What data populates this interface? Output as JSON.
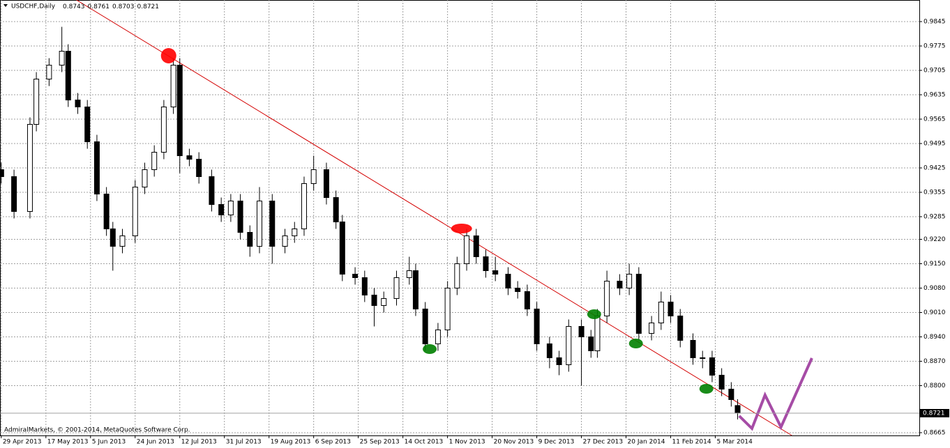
{
  "chart_data": {
    "type": "candlestick",
    "title": "USDCHF,Daily",
    "footer": "AdmiralMarkets, © 2001-2014, MetaQuotes Software Corp.",
    "xlim": [
      -0.4,
      288
    ],
    "xticks": [
      {
        "value": 0,
        "label": "29 Apr 2013"
      },
      {
        "value": 14,
        "label": "17 May 2013"
      },
      {
        "value": 28,
        "label": "5 Jun 2013"
      },
      {
        "value": 42,
        "label": "24 Jun 2013"
      },
      {
        "value": 56,
        "label": "12 Jul 2013"
      },
      {
        "value": 70,
        "label": "31 Jul 2013"
      },
      {
        "value": 84,
        "label": "19 Aug 2013"
      },
      {
        "value": 98,
        "label": "6 Sep 2013"
      },
      {
        "value": 112,
        "label": "25 Sep 2013"
      },
      {
        "value": 126,
        "label": "14 Oct 2013"
      },
      {
        "value": 140,
        "label": "1 Nov 2013"
      },
      {
        "value": 154,
        "label": "20 Nov 2013"
      },
      {
        "value": 168,
        "label": "9 Dec 2013"
      },
      {
        "value": 182,
        "label": "27 Dec 2013"
      },
      {
        "value": 196,
        "label": "20 Jan 2014"
      },
      {
        "value": 210,
        "label": "11 Feb 2014"
      },
      {
        "value": 224,
        "label": "5 Mar 2014"
      }
    ],
    "ylim": [
      0.8657,
      0.9907
    ],
    "yticks": [
      0.9845,
      0.9775,
      0.9705,
      0.9635,
      0.9565,
      0.9495,
      0.9425,
      0.9355,
      0.9285,
      {
        "value": 0.922,
        "label": "0.9220"
      },
      {
        "value": 0.915,
        "label": "0.9150"
      },
      {
        "value": 0.908,
        "label": "0.9080"
      },
      {
        "value": 0.901,
        "label": "0.9010"
      },
      {
        "value": 0.894,
        "label": "0.8940"
      },
      {
        "value": 0.887,
        "label": "0.8870"
      },
      {
        "value": 0.88,
        "label": "0.8800"
      },
      0.8665
    ],
    "grid": true,
    "color": "#000000",
    "x": [
      0,
      4,
      9,
      11,
      15,
      19,
      21,
      24,
      27,
      30,
      33,
      35,
      38,
      42,
      45,
      48,
      51,
      54,
      56,
      59,
      62,
      66,
      69,
      72,
      75,
      78,
      81,
      85,
      89,
      92,
      95,
      98,
      102,
      105,
      107,
      111,
      114,
      117,
      120,
      124,
      128,
      130,
      133,
      137,
      140,
      143,
      146,
      149,
      152,
      155,
      159,
      162,
      165,
      168,
      172,
      175,
      178,
      182,
      185,
      187,
      190,
      194,
      197,
      200,
      204,
      207,
      210,
      213,
      217,
      220,
      223,
      226,
      229,
      231
    ],
    "ohlc": [
      [
        0.942,
        0.944,
        0.938,
        0.94
      ],
      [
        0.94,
        0.942,
        0.928,
        0.93
      ],
      [
        0.93,
        0.957,
        0.928,
        0.955
      ],
      [
        0.955,
        0.97,
        0.953,
        0.968
      ],
      [
        0.968,
        0.974,
        0.966,
        0.972
      ],
      [
        0.972,
        0.983,
        0.97,
        0.976
      ],
      [
        0.976,
        0.978,
        0.96,
        0.962
      ],
      [
        0.962,
        0.964,
        0.958,
        0.96
      ],
      [
        0.96,
        0.962,
        0.948,
        0.95
      ],
      [
        0.95,
        0.952,
        0.933,
        0.935
      ],
      [
        0.935,
        0.937,
        0.923,
        0.925
      ],
      [
        0.925,
        0.927,
        0.913,
        0.92
      ],
      [
        0.92,
        0.925,
        0.918,
        0.923
      ],
      [
        0.923,
        0.939,
        0.921,
        0.937
      ],
      [
        0.937,
        0.944,
        0.935,
        0.942
      ],
      [
        0.942,
        0.949,
        0.94,
        0.947
      ],
      [
        0.947,
        0.962,
        0.945,
        0.96
      ],
      [
        0.96,
        0.974,
        0.958,
        0.972
      ],
      [
        0.972,
        0.974,
        0.941,
        0.946
      ],
      [
        0.946,
        0.948,
        0.943,
        0.945
      ],
      [
        0.945,
        0.947,
        0.938,
        0.94
      ],
      [
        0.94,
        0.942,
        0.93,
        0.932
      ],
      [
        0.932,
        0.934,
        0.927,
        0.929
      ],
      [
        0.929,
        0.935,
        0.927,
        0.933
      ],
      [
        0.933,
        0.935,
        0.922,
        0.924
      ],
      [
        0.924,
        0.926,
        0.917,
        0.92
      ],
      [
        0.92,
        0.937,
        0.918,
        0.933
      ],
      [
        0.933,
        0.935,
        0.915,
        0.92
      ],
      [
        0.92,
        0.925,
        0.918,
        0.923
      ],
      [
        0.923,
        0.927,
        0.921,
        0.925
      ],
      [
        0.925,
        0.94,
        0.923,
        0.938
      ],
      [
        0.938,
        0.946,
        0.936,
        0.942
      ],
      [
        0.942,
        0.944,
        0.932,
        0.934
      ],
      [
        0.934,
        0.936,
        0.925,
        0.927
      ],
      [
        0.927,
        0.929,
        0.91,
        0.912
      ],
      [
        0.912,
        0.914,
        0.909,
        0.911
      ],
      [
        0.911,
        0.913,
        0.904,
        0.906
      ],
      [
        0.906,
        0.908,
        0.897,
        0.903
      ],
      [
        0.903,
        0.907,
        0.901,
        0.905
      ],
      [
        0.905,
        0.913,
        0.903,
        0.911
      ],
      [
        0.911,
        0.917,
        0.909,
        0.913
      ],
      [
        0.913,
        0.915,
        0.9,
        0.902
      ],
      [
        0.902,
        0.904,
        0.89,
        0.892
      ],
      [
        0.892,
        0.898,
        0.89,
        0.896
      ],
      [
        0.896,
        0.91,
        0.894,
        0.908
      ],
      [
        0.908,
        0.917,
        0.906,
        0.915
      ],
      [
        0.915,
        0.925,
        0.913,
        0.923
      ],
      [
        0.923,
        0.925,
        0.915,
        0.917
      ],
      [
        0.917,
        0.919,
        0.911,
        0.913
      ],
      [
        0.913,
        0.917,
        0.91,
        0.912
      ],
      [
        0.912,
        0.914,
        0.906,
        0.908
      ],
      [
        0.908,
        0.91,
        0.905,
        0.907
      ],
      [
        0.907,
        0.909,
        0.9,
        0.902
      ],
      [
        0.902,
        0.904,
        0.89,
        0.892
      ],
      [
        0.892,
        0.894,
        0.885,
        0.888
      ],
      [
        0.888,
        0.89,
        0.883,
        0.886
      ],
      [
        0.886,
        0.899,
        0.884,
        0.897
      ],
      [
        0.897,
        0.899,
        0.88,
        0.894
      ],
      [
        0.894,
        0.896,
        0.888,
        0.89
      ],
      [
        0.89,
        0.902,
        0.888,
        0.9
      ],
      [
        0.9,
        0.913,
        0.898,
        0.91
      ],
      [
        0.91,
        0.912,
        0.906,
        0.908
      ],
      [
        0.908,
        0.915,
        0.906,
        0.912
      ],
      [
        0.912,
        0.914,
        0.893,
        0.895
      ],
      [
        0.895,
        0.9,
        0.893,
        0.898
      ],
      [
        0.898,
        0.907,
        0.896,
        0.904
      ],
      [
        0.904,
        0.906,
        0.898,
        0.9
      ],
      [
        0.9,
        0.902,
        0.891,
        0.893
      ],
      [
        0.893,
        0.895,
        0.886,
        0.888
      ],
      [
        0.888,
        0.89,
        0.885,
        0.888
      ],
      [
        0.888,
        0.89,
        0.881,
        0.883
      ],
      [
        0.883,
        0.885,
        0.877,
        0.879
      ],
      [
        0.879,
        0.881,
        0.874,
        0.876
      ],
      [
        0.8743,
        0.8761,
        0.8703,
        0.8721
      ]
    ],
    "shapes": [
      {
        "kind": "line",
        "color": "#d40000",
        "x": [
          23.6,
          248
        ],
        "y": [
          0.9907,
          0.8657
        ]
      },
      {
        "kind": "dot",
        "color": "#ff0000",
        "x": 52.5,
        "y": 0.9747
      },
      {
        "kind": "ellipse",
        "color": "#ff0000",
        "x": 144.4,
        "y": 0.9251
      },
      {
        "kind": "ellipse",
        "color": "#008000",
        "x": 134.4,
        "y": 0.8905
      },
      {
        "kind": "ellipse",
        "color": "#008000",
        "x": 186,
        "y": 0.9005
      },
      {
        "kind": "ellipse",
        "color": "#008000",
        "x": 199.1,
        "y": 0.8921
      },
      {
        "kind": "ellipse",
        "color": "#008000",
        "x": 221.2,
        "y": 0.8791
      },
      {
        "kind": "polyline",
        "color": "#a64ca6",
        "x": [
          231.5,
          235.5,
          239.6,
          244.6,
          254.3
        ],
        "y": [
          0.8713,
          0.8677,
          0.8773,
          0.8681,
          0.8879
        ]
      }
    ]
  }
}
